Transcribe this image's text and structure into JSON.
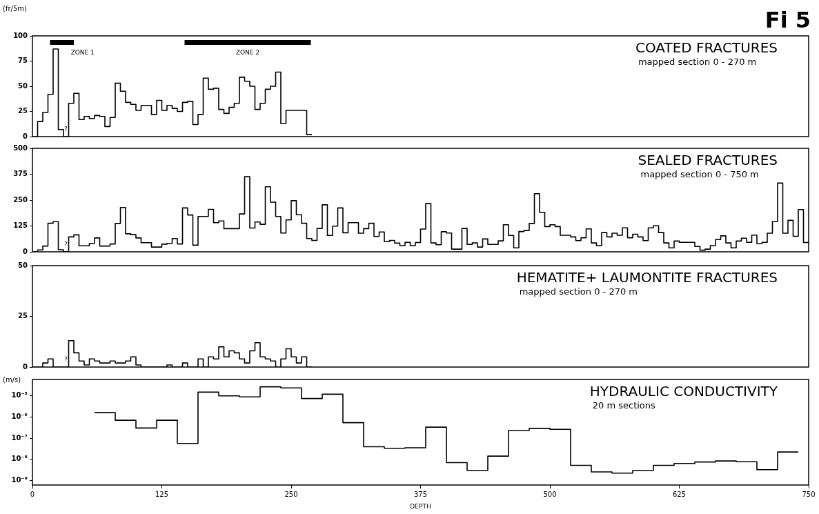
{
  "chart_data": [
    {
      "type": "step",
      "title": "COATED FRACTURES",
      "subtitle": "mapped section 0 - 270 m",
      "ylabel": "(fr/5m)",
      "color": "#000000",
      "x": [
        0,
        5,
        10,
        15,
        20,
        25,
        30,
        35,
        40,
        45,
        50,
        55,
        60,
        65,
        70,
        75,
        80,
        85,
        90,
        95,
        100,
        105,
        115,
        120,
        125,
        130,
        135,
        140,
        145,
        150,
        155,
        160,
        165,
        170,
        175,
        180,
        185,
        190,
        195,
        200,
        205,
        210,
        215,
        220,
        225,
        230,
        235,
        240,
        245,
        265,
        270
      ],
      "values": [
        0,
        15,
        24,
        42,
        87,
        7,
        0,
        33,
        43,
        17,
        20,
        18,
        21,
        20,
        10,
        19,
        53,
        45,
        34,
        32,
        26,
        31,
        22,
        36,
        26,
        31,
        28,
        25,
        34,
        35,
        12,
        22,
        58,
        47,
        48,
        27,
        23,
        29,
        33,
        59,
        55,
        50,
        27,
        33,
        47,
        50,
        64,
        13,
        26,
        2,
        2
      ],
      "xlim": [
        0,
        750
      ],
      "xticks": [
        0,
        125,
        250,
        375,
        500,
        625,
        750
      ],
      "ylim": [
        0,
        100
      ],
      "yticks": [
        0,
        25,
        50,
        75,
        100
      ],
      "tick_labels": "y",
      "bands": [
        {
          "axis": "x",
          "from": 17,
          "to": 40,
          "label": "ZONE 1",
          "color": "#000000"
        },
        {
          "axis": "x",
          "from": 147,
          "to": 269,
          "label": "ZONE 2",
          "color": "#000000"
        }
      ],
      "annotations": [
        "Fi 5",
        "?"
      ]
    },
    {
      "type": "step",
      "title": "SEALED FRACTURES",
      "subtitle": "mapped section 0 - 750 m",
      "color": "#000000",
      "x": [
        0,
        5,
        10,
        15,
        20,
        25,
        30,
        35,
        40,
        45,
        55,
        60,
        65,
        75,
        80,
        85,
        90,
        95,
        100,
        105,
        115,
        125,
        130,
        135,
        140,
        145,
        150,
        155,
        160,
        170,
        175,
        180,
        185,
        200,
        205,
        210,
        215,
        220,
        225,
        230,
        235,
        240,
        245,
        250,
        255,
        260,
        265,
        270,
        275,
        280,
        285,
        290,
        295,
        300,
        305,
        315,
        320,
        325,
        330,
        335,
        340,
        345,
        350,
        355,
        360,
        365,
        370,
        375,
        380,
        385,
        390,
        395,
        400,
        405,
        415,
        420,
        425,
        430,
        435,
        440,
        450,
        455,
        460,
        465,
        470,
        475,
        480,
        485,
        490,
        495,
        500,
        505,
        510,
        520,
        525,
        530,
        535,
        540,
        545,
        550,
        555,
        560,
        565,
        570,
        575,
        580,
        585,
        590,
        595,
        600,
        605,
        610,
        615,
        620,
        625,
        640,
        645,
        650,
        655,
        660,
        665,
        670,
        675,
        680,
        685,
        690,
        695,
        700,
        705,
        710,
        715,
        720,
        725,
        730,
        735,
        740,
        745,
        750
      ],
      "values": [
        0,
        9,
        28,
        138,
        146,
        10,
        0,
        72,
        82,
        29,
        41,
        67,
        28,
        38,
        137,
        214,
        87,
        83,
        67,
        44,
        23,
        37,
        41,
        64,
        38,
        212,
        178,
        32,
        171,
        205,
        141,
        149,
        112,
        183,
        363,
        115,
        144,
        133,
        314,
        240,
        171,
        91,
        154,
        247,
        179,
        138,
        64,
        55,
        113,
        227,
        79,
        124,
        212,
        92,
        141,
        90,
        112,
        138,
        74,
        96,
        49,
        55,
        42,
        30,
        46,
        30,
        45,
        110,
        233,
        43,
        34,
        97,
        91,
        13,
        113,
        36,
        43,
        23,
        62,
        36,
        53,
        131,
        79,
        19,
        98,
        103,
        137,
        281,
        191,
        122,
        131,
        122,
        80,
        72,
        54,
        68,
        111,
        43,
        30,
        93,
        72,
        90,
        80,
        116,
        68,
        85,
        72,
        54,
        116,
        126,
        93,
        43,
        19,
        52,
        46,
        26,
        8,
        13,
        30,
        59,
        77,
        43,
        19,
        52,
        66,
        46,
        81,
        39,
        46,
        90,
        146,
        332,
        90,
        152,
        75,
        204,
        45,
        45
      ],
      "xlim": [
        0,
        750
      ],
      "xticks": [
        0,
        125,
        250,
        375,
        500,
        625,
        750
      ],
      "ylim": [
        0,
        500
      ],
      "yticks": [
        0,
        125,
        250,
        375,
        500
      ],
      "tick_labels": "y",
      "annotations": [
        "?"
      ]
    },
    {
      "type": "step",
      "title": "HEMATITE+ LAUMONTITE FRACTURES",
      "subtitle": "mapped section 0 - 270 m",
      "color": "#000000",
      "x": [
        0,
        10,
        15,
        20,
        35,
        40,
        45,
        50,
        55,
        60,
        65,
        75,
        80,
        90,
        95,
        100,
        105,
        130,
        135,
        145,
        150,
        160,
        165,
        170,
        175,
        180,
        185,
        190,
        195,
        200,
        205,
        210,
        215,
        220,
        225,
        230,
        235,
        240,
        245,
        250,
        255,
        260,
        265,
        270
      ],
      "values": [
        0,
        2,
        4,
        0,
        13,
        7,
        3,
        1,
        4,
        3,
        2,
        3,
        2,
        3,
        5,
        1,
        0,
        1,
        0,
        2,
        0,
        4,
        0,
        5,
        4,
        10,
        5,
        8,
        7,
        4,
        2,
        8,
        12,
        5,
        4,
        3,
        0,
        4,
        9,
        5,
        2,
        5,
        0,
        0
      ],
      "xlim": [
        0,
        750
      ],
      "xticks": [
        0,
        125,
        250,
        375,
        500,
        625,
        750
      ],
      "ylim": [
        0,
        50
      ],
      "yticks": [
        0,
        25,
        50
      ],
      "tick_labels": "y",
      "annotations": [
        "?"
      ]
    },
    {
      "type": "step",
      "title": "HYDRAULIC CONDUCTIVITY",
      "subtitle": "20 m sections",
      "ylabel": "(m/s)",
      "xlabel": "DEPTH",
      "color": "#000000",
      "log": "y",
      "x": [
        60,
        80,
        100,
        120,
        140,
        160,
        180,
        200,
        220,
        240,
        260,
        280,
        300,
        320,
        340,
        360,
        380,
        400,
        420,
        440,
        460,
        480,
        500,
        520,
        540,
        560,
        580,
        600,
        620,
        640,
        660,
        680,
        700,
        720,
        740
      ],
      "values": [
        1.6e-06,
        7e-07,
        3e-07,
        7e-07,
        5.6e-08,
        1.5e-05,
        1e-05,
        9e-06,
        2.7e-05,
        2.4e-05,
        7.5e-06,
        1.2e-05,
        5.4e-07,
        3.9e-08,
        3.3e-08,
        3.5e-08,
        3.3e-07,
        6.9e-09,
        2.9e-09,
        1.4e-08,
        2.3e-07,
        2.9e-07,
        2.6e-07,
        5.1e-09,
        2.5e-09,
        2.2e-09,
        2.9e-09,
        5.1e-09,
        6.3e-09,
        7.4e-09,
        8.3e-09,
        7.6e-09,
        3.2e-09,
        2.2e-08,
        2.2e-08
      ],
      "xlim": [
        0,
        750
      ],
      "xticks": [
        0,
        125,
        250,
        375,
        500,
        625,
        750
      ],
      "ylim": [
        6e-10,
        6e-05
      ],
      "yticks": [
        {
          "value": 1e-09,
          "label": "10⁻⁹"
        },
        {
          "value": 1e-08,
          "label": "10⁻⁸"
        },
        {
          "value": 1e-07,
          "label": "10⁻⁷"
        },
        {
          "value": 1e-06,
          "label": "10⁻⁶"
        },
        {
          "value": 1e-05,
          "label": "10⁻⁵"
        }
      ]
    }
  ]
}
